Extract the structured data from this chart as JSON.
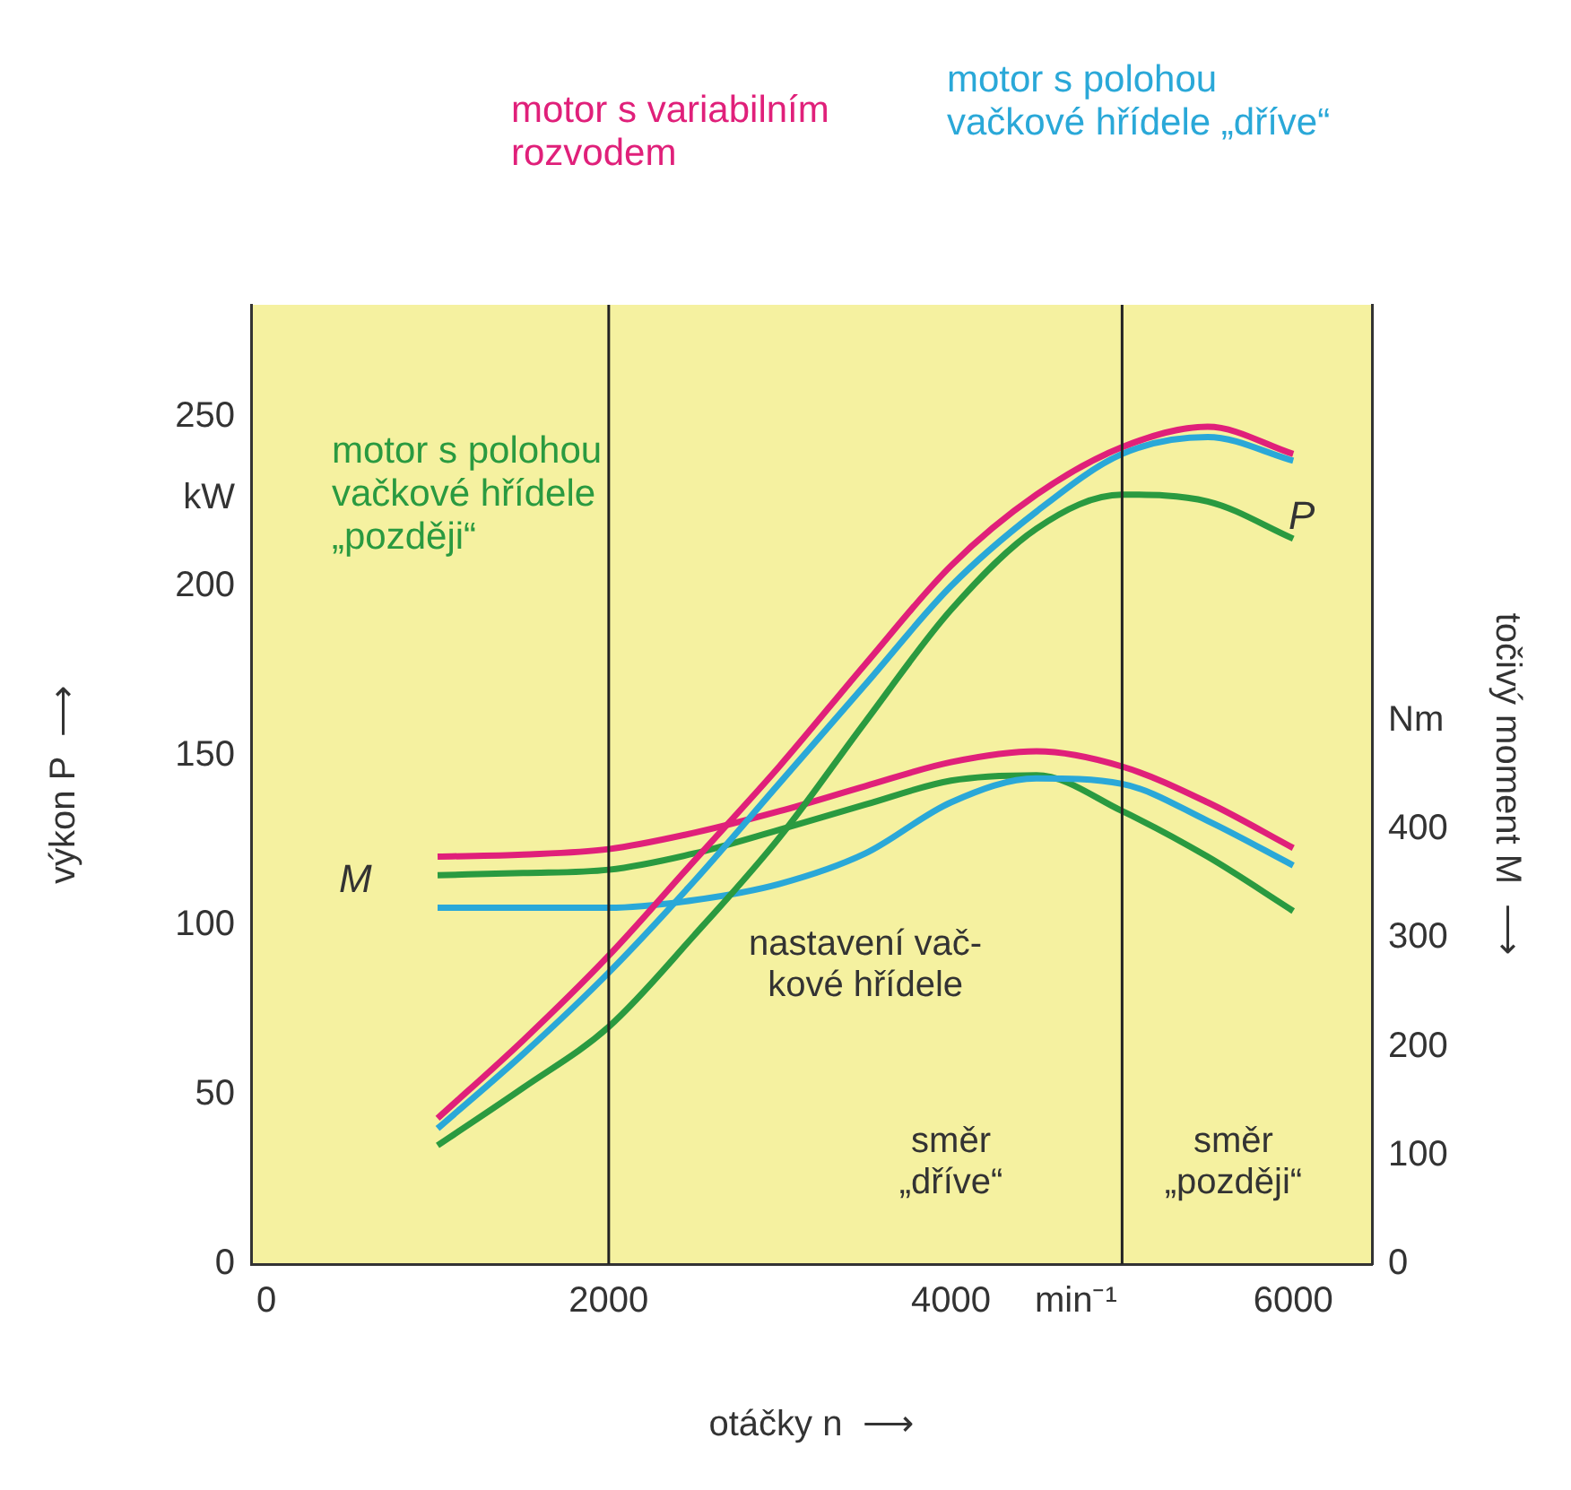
{
  "chart_data": {
    "type": "line",
    "x": [
      1000,
      1500,
      2000,
      2500,
      3000,
      3500,
      4000,
      4500,
      5000,
      5500,
      6000
    ],
    "series": [
      {
        "name": "motor s variabilním\nrozvodem",
        "color": "#e0207a",
        "values": [
          43,
          66,
          91,
          119,
          147,
          177,
          206,
          227,
          241,
          247,
          239
        ]
      },
      {
        "name": "motor s polohou\nvačkové hřídele „dříve“",
        "color": "#2aa8d8",
        "values": [
          40,
          62,
          86,
          113,
          142,
          171,
          200,
          222,
          239,
          244,
          237
        ]
      },
      {
        "name": "motor s polohou\nvačkové hřídele\n„později“",
        "color": "#2a9a40",
        "values": [
          35,
          52,
          70,
          97,
          126,
          160,
          193,
          217,
          227,
          225,
          214
        ]
      },
      {
        "color": "#e0207a",
        "axis": "y2",
        "values": [
          375,
          377,
          382,
          397,
          417,
          440,
          462,
          472,
          458,
          425,
          383
        ]
      },
      {
        "color": "#2aa8d8",
        "axis": "y2",
        "values": [
          328,
          328,
          328,
          335,
          350,
          378,
          425,
          447,
          442,
          408,
          367
        ]
      },
      {
        "color": "#2a9a40",
        "axis": "y2",
        "values": [
          358,
          360,
          363,
          378,
          400,
          423,
          445,
          450,
          417,
          375,
          325
        ]
      }
    ],
    "xlim": [
      -90,
      6460
    ],
    "xticks": [
      0,
      2000,
      4000,
      {
        "value": 4730,
        "label": "min⁻¹"
      },
      6000
    ],
    "ylim": [
      0,
      283
    ],
    "yticks": [
      0,
      50,
      100,
      150,
      200,
      {
        "value": 226,
        "label": "kW"
      },
      250
    ],
    "y2lim": [
      0,
      883
    ],
    "y2ticks": [
      0,
      100,
      200,
      300,
      400,
      {
        "value": 500,
        "label": "Nm"
      }
    ],
    "xlabel": "otáčky n  ⟶",
    "ylabel": "výkon P  ⟶",
    "y2label": "točivý moment M  ⟶",
    "annotations": [
      "P",
      "M",
      "nastavení vač-\nkové hřídele",
      "směr\n„dříve“",
      "směr\n„později“"
    ],
    "ref_lines": [
      {
        "axis": "x",
        "value": 2000,
        "color": "#222222"
      },
      {
        "axis": "x",
        "value": 5000,
        "color": "#222222"
      }
    ],
    "grid": false,
    "legend": false,
    "marker": "none",
    "line_style": "solid"
  }
}
